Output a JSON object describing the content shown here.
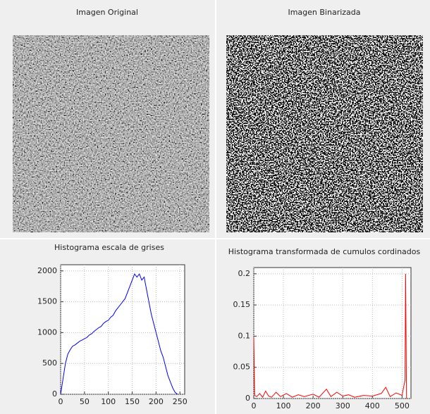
{
  "chart_data": [
    {
      "type": "image",
      "title": "Imagen Original"
    },
    {
      "type": "image",
      "title": "Imagen Binarizada"
    },
    {
      "type": "line",
      "title": "Histograma escala de grises",
      "color": "#0000ff",
      "grid": true,
      "x": [
        0,
        5,
        10,
        15,
        20,
        25,
        30,
        35,
        40,
        45,
        50,
        55,
        60,
        65,
        70,
        75,
        80,
        85,
        90,
        95,
        100,
        105,
        110,
        115,
        120,
        125,
        130,
        135,
        140,
        145,
        150,
        155,
        160,
        165,
        170,
        175,
        180,
        185,
        190,
        195,
        200,
        205,
        210,
        215,
        220,
        225,
        230,
        235,
        240,
        245
      ],
      "values": [
        0,
        250,
        500,
        650,
        720,
        780,
        800,
        830,
        860,
        880,
        900,
        920,
        960,
        980,
        1020,
        1050,
        1080,
        1100,
        1150,
        1180,
        1200,
        1250,
        1280,
        1350,
        1400,
        1450,
        1500,
        1550,
        1650,
        1750,
        1850,
        1950,
        1900,
        1950,
        1850,
        1900,
        1700,
        1500,
        1300,
        1150,
        1000,
        850,
        700,
        600,
        450,
        300,
        200,
        100,
        30,
        0
      ],
      "xlim": [
        0,
        260
      ],
      "ylim": [
        0,
        2100
      ],
      "xticks": [
        0,
        50,
        100,
        150,
        200,
        250
      ],
      "yticks": [
        0,
        500,
        1000,
        1500,
        2000
      ]
    },
    {
      "type": "line",
      "title": "Histograma transformada de cumulos cordinados",
      "color": "#ff0000",
      "grid": true,
      "x": [
        0,
        3,
        10,
        20,
        30,
        40,
        50,
        60,
        75,
        90,
        110,
        130,
        150,
        170,
        200,
        220,
        245,
        260,
        280,
        300,
        320,
        340,
        370,
        400,
        430,
        445,
        460,
        480,
        500,
        510,
        512,
        515
      ],
      "values": [
        0.098,
        0.005,
        0.003,
        0.008,
        0.002,
        0.012,
        0.004,
        0.002,
        0.01,
        0.003,
        0.008,
        0.002,
        0.006,
        0.003,
        0.007,
        0.002,
        0.015,
        0.003,
        0.01,
        0.004,
        0.006,
        0.002,
        0.005,
        0.004,
        0.008,
        0.018,
        0.003,
        0.009,
        0.005,
        0.03,
        0.2,
        0
      ],
      "xlim": [
        0,
        530
      ],
      "ylim": [
        0,
        0.21
      ],
      "xticks": [
        0,
        100,
        200,
        300,
        400,
        500
      ],
      "yticks": [
        0,
        0.05,
        0.1,
        0.15,
        0.2
      ]
    }
  ]
}
